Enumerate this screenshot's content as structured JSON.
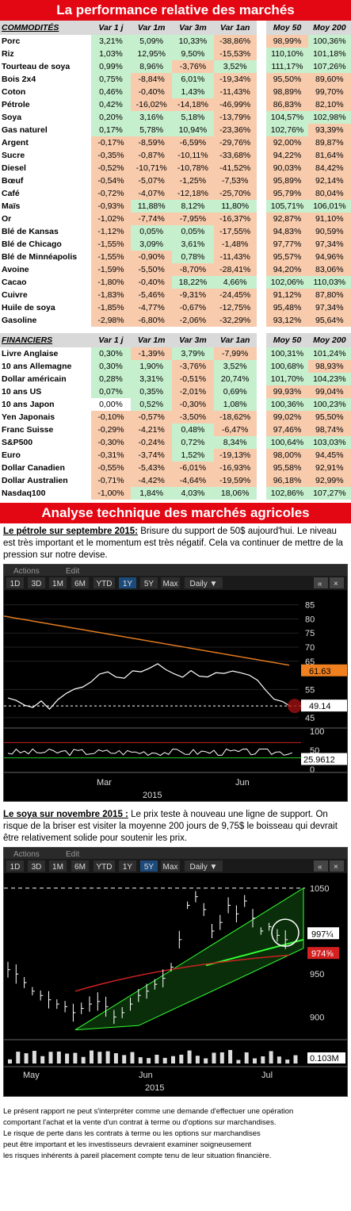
{
  "banner1": "La performance relative des marchés",
  "headers": [
    "COMMODITÉS",
    "Var 1 j",
    "Var 1m",
    "Var 3m",
    "Var 1an",
    "Moy 50",
    "Moy 200"
  ],
  "commodities": [
    [
      "Porc",
      "3,21%",
      "5,09%",
      "10,33%",
      "-38,86%",
      "98,99%",
      "100,36%"
    ],
    [
      "Riz",
      "1,03%",
      "12,95%",
      "9,50%",
      "-15,53%",
      "110,10%",
      "101,18%"
    ],
    [
      "Tourteau de soya",
      "0,99%",
      "8,96%",
      "-3,76%",
      "3,52%",
      "111,17%",
      "107,26%"
    ],
    [
      "Bois 2x4",
      "0,75%",
      "-8,84%",
      "6,01%",
      "-19,34%",
      "95,50%",
      "89,60%"
    ],
    [
      "Coton",
      "0,46%",
      "-0,40%",
      "1,43%",
      "-11,43%",
      "98,89%",
      "99,70%"
    ],
    [
      "Pétrole",
      "0,42%",
      "-16,02%",
      "-14,18%",
      "-46,99%",
      "86,83%",
      "82,10%"
    ],
    [
      "Soya",
      "0,20%",
      "3,16%",
      "5,18%",
      "-13,79%",
      "104,57%",
      "102,98%"
    ],
    [
      "Gas naturel",
      "0,17%",
      "5,78%",
      "10,94%",
      "-23,36%",
      "102,76%",
      "93,39%"
    ],
    [
      "Argent",
      "-0,17%",
      "-8,59%",
      "-6,59%",
      "-29,76%",
      "92,00%",
      "89,87%"
    ],
    [
      "Sucre",
      "-0,35%",
      "-0,87%",
      "-10,11%",
      "-33,68%",
      "94,22%",
      "81,64%"
    ],
    [
      "Diesel",
      "-0,52%",
      "-10,71%",
      "-10,78%",
      "-41,52%",
      "90,03%",
      "84,42%"
    ],
    [
      "Bœuf",
      "-0,54%",
      "-5,07%",
      "-1,25%",
      "-7,53%",
      "95,89%",
      "92,14%"
    ],
    [
      "Café",
      "-0,72%",
      "-4,07%",
      "-12,18%",
      "-25,70%",
      "95,79%",
      "80,04%"
    ],
    [
      "Maïs",
      "-0,93%",
      "11,88%",
      "8,12%",
      "11,80%",
      "105,71%",
      "106,01%"
    ],
    [
      "Or",
      "-1,02%",
      "-7,74%",
      "-7,95%",
      "-16,37%",
      "92,87%",
      "91,10%"
    ],
    [
      "Blé de Kansas",
      "-1,12%",
      "0,05%",
      "0,05%",
      "-17,55%",
      "94,83%",
      "90,59%"
    ],
    [
      "Blé de Chicago",
      "-1,55%",
      "3,09%",
      "3,61%",
      "-1,48%",
      "97,77%",
      "97,34%"
    ],
    [
      "Blé de Minnéapolis",
      "-1,55%",
      "-0,90%",
      "0,78%",
      "-11,43%",
      "95,57%",
      "94,96%"
    ],
    [
      "Avoine",
      "-1,59%",
      "-5,50%",
      "-8,70%",
      "-28,41%",
      "94,20%",
      "83,06%"
    ],
    [
      "Cacao",
      "-1,80%",
      "-0,40%",
      "18,22%",
      "4,66%",
      "102,06%",
      "110,03%"
    ],
    [
      "Cuivre",
      "-1,83%",
      "-5,46%",
      "-9,31%",
      "-24,45%",
      "91,12%",
      "87,80%"
    ],
    [
      "Huile de soya",
      "-1,85%",
      "-4,77%",
      "-0,67%",
      "-12,75%",
      "95,48%",
      "97,34%"
    ],
    [
      "Gasoline",
      "-2,98%",
      "-6,80%",
      "-2,06%",
      "-32,29%",
      "93,12%",
      "95,64%"
    ]
  ],
  "headers2": [
    "FINANCIERS",
    "Var 1 j",
    "Var 1m",
    "Var 3m",
    "Var 1an",
    "Moy 50",
    "Moy 200"
  ],
  "financials": [
    [
      "Livre Anglaise",
      "0,30%",
      "-1,39%",
      "3,79%",
      "-7,99%",
      "100,31%",
      "101,24%"
    ],
    [
      "10 ans Allemagne",
      "0,30%",
      "1,90%",
      "-3,76%",
      "3,52%",
      "100,68%",
      "98,93%"
    ],
    [
      "Dollar américain",
      "0,28%",
      "3,31%",
      "-0,51%",
      "20,74%",
      "101,70%",
      "104,23%"
    ],
    [
      "10 ans US",
      "0,07%",
      "0,35%",
      "-2,01%",
      "0,69%",
      "99,93%",
      "99,04%"
    ],
    [
      "10 ans Japon",
      "0,00%",
      "0,52%",
      "-0,30%",
      "1,08%",
      "100,36%",
      "100,23%"
    ],
    [
      "Yen Japonais",
      "-0,10%",
      "-0,57%",
      "-3,50%",
      "-18,62%",
      "99,02%",
      "95,50%"
    ],
    [
      "Franc Suisse",
      "-0,29%",
      "-4,21%",
      "0,48%",
      "-6,47%",
      "97,46%",
      "98,74%"
    ],
    [
      "S&P500",
      "-0,30%",
      "-0,24%",
      "0,72%",
      "8,34%",
      "100,64%",
      "103,03%"
    ],
    [
      "Euro",
      "-0,31%",
      "-3,74%",
      "1,52%",
      "-19,13%",
      "98,00%",
      "94,45%"
    ],
    [
      "Dollar Canadien",
      "-0,55%",
      "-5,43%",
      "-6,01%",
      "-16,93%",
      "95,58%",
      "92,91%"
    ],
    [
      "Dollar Australien",
      "-0,71%",
      "-4,42%",
      "-4,64%",
      "-19,59%",
      "96,18%",
      "92,99%"
    ],
    [
      "Nasdaq100",
      "-1,00%",
      "1,84%",
      "4,03%",
      "18,06%",
      "102,86%",
      "107,27%"
    ]
  ],
  "banner2": "Analyse technique des marchés agricoles",
  "oil": {
    "title": "Le pétrole sur septembre 2015:",
    "text": " Brisure du support de 50$ aujourd'hui. Le niveau est très important et le momentum est très négatif. Cela va continuer de mettre de la pression sur notre devise."
  },
  "soy": {
    "title": "Le soya sur novembre 2015 :",
    "text": " Le prix teste à nouveau une ligne de support. On risque de la briser est visiter la moyenne 200 jours de 9,75$ le boisseau qui devrait être relativement solide pour soutenir les prix."
  },
  "chart1": {
    "actions": "Actions",
    "edit": "Edit",
    "buttons": [
      "1D",
      "3D",
      "1M",
      "6M",
      "YTD",
      "1Y",
      "5Y",
      "Max",
      "Daily ▼"
    ],
    "selected": "1Y",
    "ticks": [
      "85",
      "80",
      "75",
      "70",
      "65",
      "55",
      "45"
    ],
    "last": "61.63",
    "price": "49.14",
    "osc_ticks": [
      "100",
      "50",
      "0"
    ],
    "osc": "25.9612",
    "months": [
      "Mar",
      "Jun"
    ],
    "year": "2015",
    "colors": {
      "ma": "#e07b20",
      "price": "#ffffff",
      "tag_ma": "#f08020"
    }
  },
  "chart2": {
    "actions": "Actions",
    "edit": "Edit",
    "buttons": [
      "1D",
      "3D",
      "1M",
      "6M",
      "YTD",
      "1Y",
      "5Y",
      "Max",
      "Daily ▼"
    ],
    "selected": "5Y",
    "ticks": [
      "1050",
      "950",
      "900"
    ],
    "price": "997¼",
    "ma": "974⅝",
    "vol": "0.103M",
    "months": [
      "May",
      "Jun",
      "Jul"
    ],
    "year": "2015",
    "colors": {
      "channel": "#33ff33",
      "ma": "#cc2222"
    }
  },
  "disclaimer": [
    "Le présent rapport ne peut s'interpréter comme une demande d'effectuer une opération",
    "comportant l'achat et la vente d'un contrat à terme ou d'options sur marchandises.",
    "Le risque de perte dans les contrats à terme ou les options sur marchandises",
    "peut être important et les investisseurs devraient examiner soigneusement",
    "les risques inhérents à pareil placement compte tenu de leur situation financière."
  ]
}
